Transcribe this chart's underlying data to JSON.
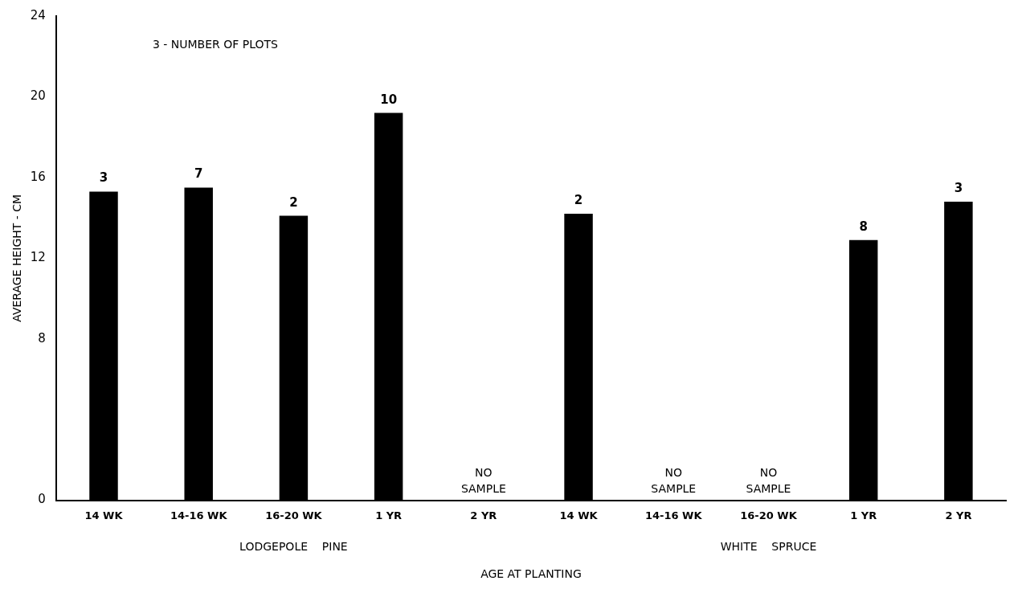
{
  "chart_data": {
    "type": "bar",
    "xlabel": "AGE AT PLANTING",
    "ylabel": "AVERAGE HEIGHT - CM",
    "categories": [
      "14 WK",
      "14-16 WK",
      "16-20 WK",
      "1 YR",
      "2 YR",
      "14 WK",
      "14-16 WK",
      "16-20 WK",
      "1 YR",
      "2 YR"
    ],
    "values": [
      15.3,
      15.5,
      14.1,
      19.2,
      null,
      14.2,
      null,
      null,
      12.9,
      14.8
    ],
    "color": "#000000",
    "ylim": [
      0,
      24
    ],
    "yticks": [
      0,
      8,
      12,
      16,
      20,
      24
    ],
    "grid": false,
    "legend": false,
    "annotations": [
      "3 - NUMBER OF PLOTS",
      "LODGEPOLE PINE",
      "WHITE SPRUCE",
      "3",
      "7",
      "2",
      "10",
      "NO SAMPLE",
      "2",
      "NO SAMPLE",
      "NO SAMPLE",
      "8",
      "3"
    ]
  }
}
